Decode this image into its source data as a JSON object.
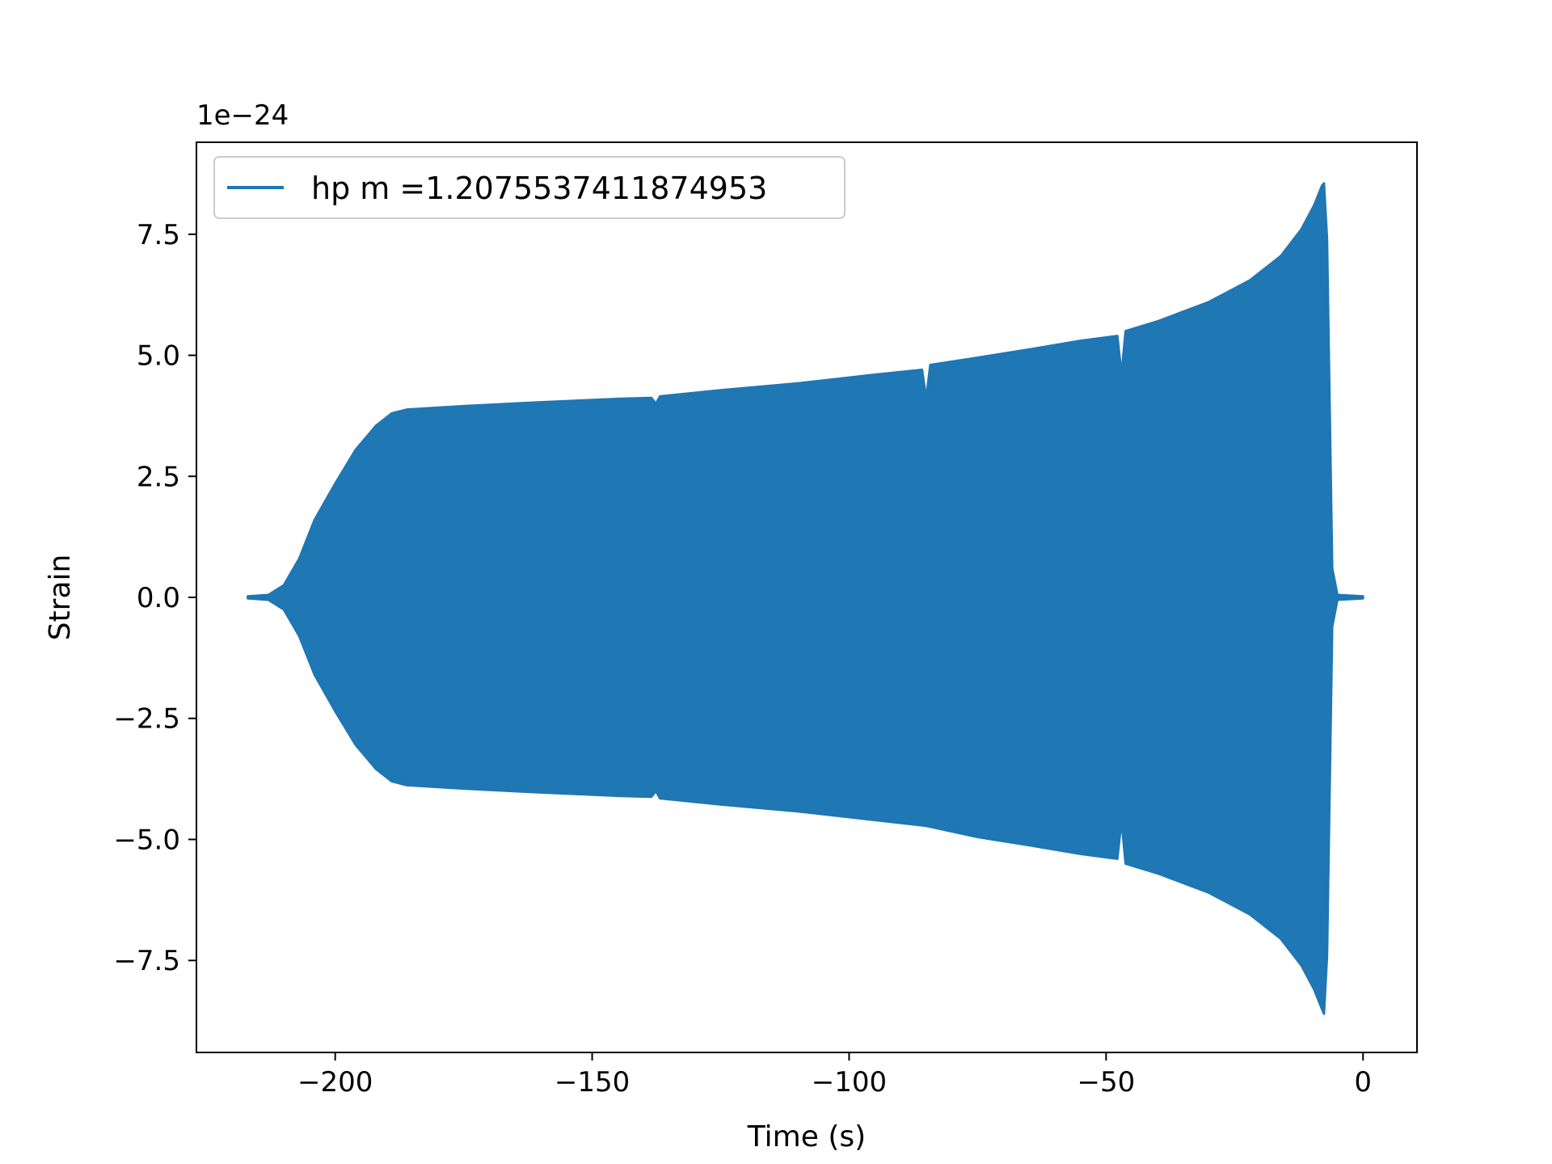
{
  "chart_data": {
    "type": "line",
    "xlabel": "Time (s)",
    "ylabel": "Strain",
    "y_scale_label": "1e−24",
    "y_scale_factor": 1e-24,
    "xlim": [
      -227,
      10.5
    ],
    "ylim": [
      -9.4,
      9.4
    ],
    "x_ticks": [
      {
        "value": -200,
        "label": "−200"
      },
      {
        "value": -150,
        "label": "−150"
      },
      {
        "value": -100,
        "label": "−100"
      },
      {
        "value": -50,
        "label": "−50"
      },
      {
        "value": 0,
        "label": "0"
      }
    ],
    "y_ticks": [
      {
        "value": 7.5,
        "label": "7.5"
      },
      {
        "value": 5.0,
        "label": "5.0"
      },
      {
        "value": 2.5,
        "label": "2.5"
      },
      {
        "value": 0.0,
        "label": "0.0"
      },
      {
        "value": -2.5,
        "label": "−2.5"
      },
      {
        "value": -5.0,
        "label": "−5.0"
      },
      {
        "value": -7.5,
        "label": "−7.5"
      }
    ],
    "grid": false,
    "legend_position": "top-left",
    "series": [
      {
        "name": "hp m =1.2075537411874953",
        "color": "#1f77b4",
        "envelope_upper": [
          [
            -217,
            0.02
          ],
          [
            -213,
            0.05
          ],
          [
            -210,
            0.25
          ],
          [
            -207,
            0.8
          ],
          [
            -204,
            1.6
          ],
          [
            -200,
            2.35
          ],
          [
            -196,
            3.05
          ],
          [
            -192,
            3.55
          ],
          [
            -189,
            3.8
          ],
          [
            -186,
            3.88
          ],
          [
            -175,
            3.95
          ],
          [
            -160,
            4.03
          ],
          [
            -145,
            4.1
          ],
          [
            -138.5,
            4.12
          ],
          [
            -137.6,
            4.0
          ],
          [
            -136.8,
            4.15
          ],
          [
            -125,
            4.28
          ],
          [
            -110,
            4.42
          ],
          [
            -95,
            4.6
          ],
          [
            -85.8,
            4.7
          ],
          [
            -85,
            4.1
          ],
          [
            -84.2,
            4.8
          ],
          [
            -75,
            4.95
          ],
          [
            -65,
            5.12
          ],
          [
            -55,
            5.3
          ],
          [
            -47.8,
            5.4
          ],
          [
            -47,
            4.6
          ],
          [
            -46.2,
            5.5
          ],
          [
            -40,
            5.7
          ],
          [
            -30,
            6.1
          ],
          [
            -22,
            6.55
          ],
          [
            -16,
            7.05
          ],
          [
            -12,
            7.6
          ],
          [
            -9.5,
            8.1
          ],
          [
            -8,
            8.5
          ],
          [
            -7.6,
            8.55
          ],
          [
            -7,
            7.4
          ],
          [
            -6,
            0.6
          ],
          [
            -5,
            0.05
          ],
          [
            0,
            0.02
          ]
        ],
        "envelope_lower": [
          [
            -217,
            -0.02
          ],
          [
            -213,
            -0.05
          ],
          [
            -210,
            -0.25
          ],
          [
            -207,
            -0.8
          ],
          [
            -204,
            -1.6
          ],
          [
            -200,
            -2.35
          ],
          [
            -196,
            -3.05
          ],
          [
            -192,
            -3.55
          ],
          [
            -189,
            -3.8
          ],
          [
            -186,
            -3.88
          ],
          [
            -175,
            -3.95
          ],
          [
            -160,
            -4.03
          ],
          [
            -145,
            -4.1
          ],
          [
            -138.5,
            -4.12
          ],
          [
            -137.6,
            -4.0
          ],
          [
            -136.8,
            -4.15
          ],
          [
            -125,
            -4.28
          ],
          [
            -110,
            -4.42
          ],
          [
            -95,
            -4.6
          ],
          [
            -85,
            -4.72
          ],
          [
            -75,
            -4.95
          ],
          [
            -65,
            -5.12
          ],
          [
            -55,
            -5.3
          ],
          [
            -47.8,
            -5.4
          ],
          [
            -47,
            -4.6
          ],
          [
            -46.2,
            -5.5
          ],
          [
            -40,
            -5.7
          ],
          [
            -30,
            -6.1
          ],
          [
            -22,
            -6.55
          ],
          [
            -16,
            -7.05
          ],
          [
            -12,
            -7.6
          ],
          [
            -9.5,
            -8.1
          ],
          [
            -8,
            -8.5
          ],
          [
            -7.6,
            -8.6
          ],
          [
            -7,
            -7.4
          ],
          [
            -6,
            -0.6
          ],
          [
            -5,
            -0.05
          ],
          [
            0,
            -0.02
          ]
        ]
      }
    ]
  }
}
